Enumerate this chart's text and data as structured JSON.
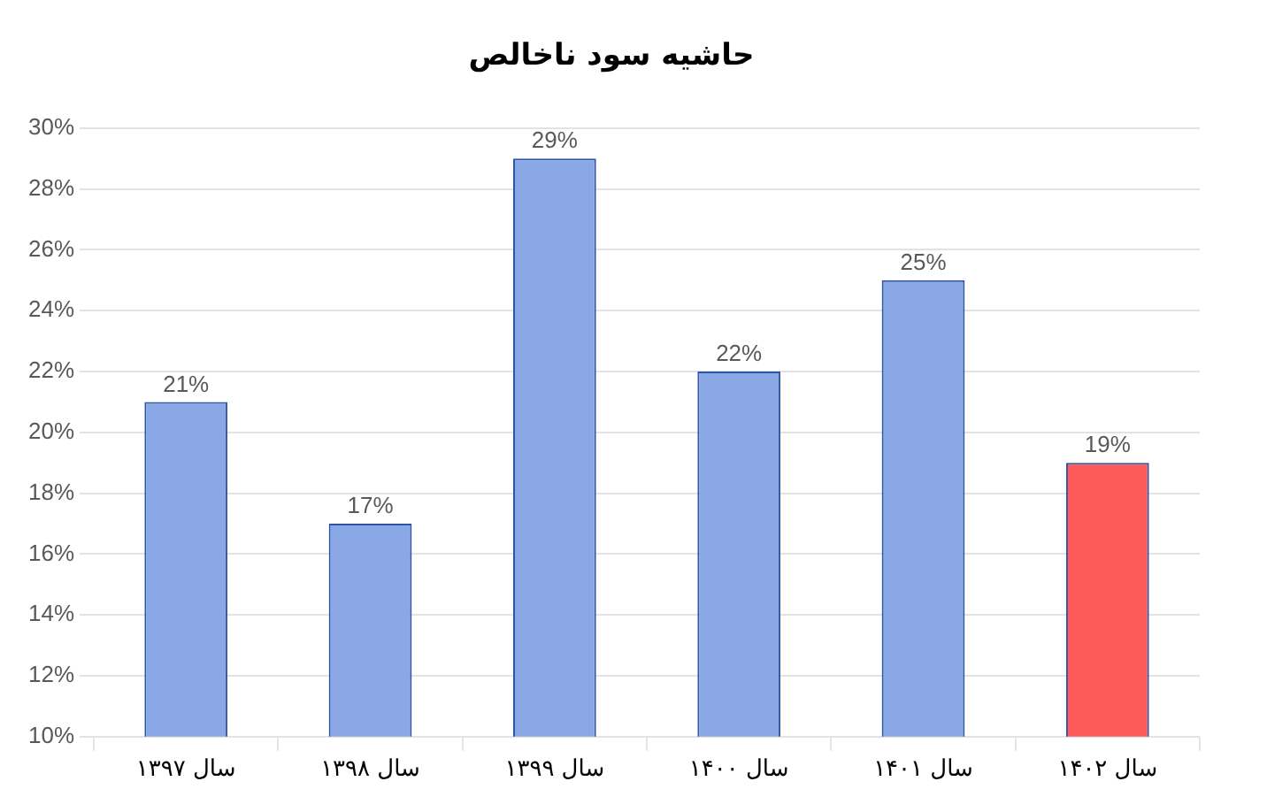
{
  "chart_data": {
    "type": "bar",
    "title": "حاشیه سود ناخالص",
    "categories": [
      "سال ۱۳۹۷",
      "سال ۱۳۹۸",
      "سال ۱۳۹۹",
      "سال ۱۴۰۰",
      "سال ۱۴۰۱",
      "سال ۱۴۰۲"
    ],
    "values": [
      21,
      17,
      29,
      22,
      25,
      19
    ],
    "colors": [
      "#8aa8e6",
      "#8aa8e6",
      "#8aa8e6",
      "#8aa8e6",
      "#8aa8e6",
      "#ff5a5a"
    ],
    "value_labels": [
      "21%",
      "17%",
      "29%",
      "22%",
      "25%",
      "19%"
    ],
    "ylim": [
      10,
      30
    ],
    "yticks": [
      {
        "value": 10,
        "label": "10%"
      },
      {
        "value": 12,
        "label": "12%"
      },
      {
        "value": 14,
        "label": "14%"
      },
      {
        "value": 16,
        "label": "16%"
      },
      {
        "value": 18,
        "label": "18%"
      },
      {
        "value": 20,
        "label": "20%"
      },
      {
        "value": 22,
        "label": "22%"
      },
      {
        "value": 24,
        "label": "24%"
      },
      {
        "value": 26,
        "label": "26%"
      },
      {
        "value": 28,
        "label": "28%"
      },
      {
        "value": 30,
        "label": "30%"
      }
    ],
    "grid": true,
    "legend": false
  }
}
